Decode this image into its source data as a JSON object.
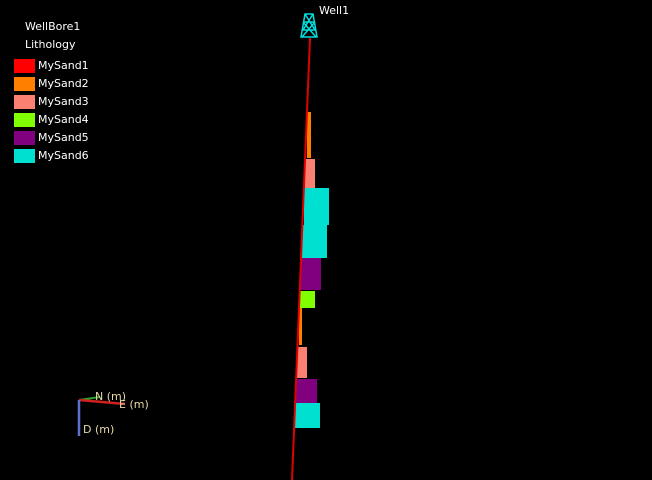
{
  "well": {
    "name": "Well1"
  },
  "legend": {
    "title": "WellBore1",
    "subtitle": "Lithology",
    "items": [
      {
        "name": "MySand1",
        "color": "#ff0000"
      },
      {
        "name": "MySand2",
        "color": "#ff7f00"
      },
      {
        "name": "MySand3",
        "color": "#fa8072"
      },
      {
        "name": "MySand4",
        "color": "#7fff00"
      },
      {
        "name": "MySand5",
        "color": "#800080"
      },
      {
        "name": "MySand6",
        "color": "#00e0d0"
      }
    ]
  },
  "axes": {
    "north": "N (m)",
    "east": "E (m)",
    "down": "D (m)"
  }
}
